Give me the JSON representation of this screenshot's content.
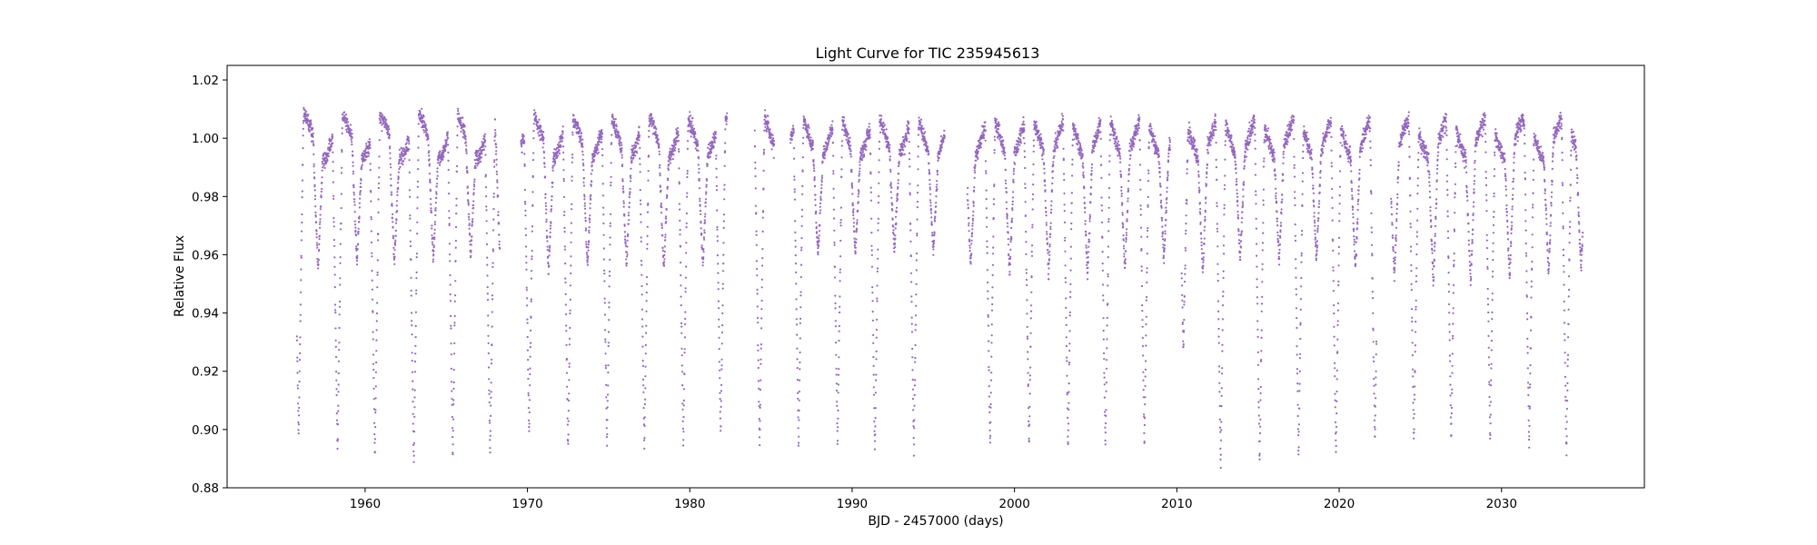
{
  "chart_data": {
    "type": "scatter",
    "title": "Light Curve for TIC 235945613",
    "xlabel": "BJD - 2457000 (days)",
    "ylabel": "Relative Flux",
    "xlim": [
      1951.5,
      2038.8
    ],
    "ylim": [
      0.88,
      1.025
    ],
    "x_ticks": [
      1960,
      1970,
      1980,
      1990,
      2000,
      2010,
      2020,
      2030
    ],
    "x_tick_labels": [
      "1960",
      "1970",
      "1980",
      "1990",
      "2000",
      "2010",
      "2020",
      "2030"
    ],
    "y_ticks": [
      0.88,
      0.9,
      0.92,
      0.94,
      0.96,
      0.98,
      1.0,
      1.02
    ],
    "y_tick_labels": [
      "0.88",
      "0.90",
      "0.92",
      "0.94",
      "0.96",
      "0.98",
      "1.00",
      "1.02"
    ],
    "grid": false,
    "marker_color": "#9467bd",
    "observing_segments": [
      [
        1955.8,
        1968.3
      ],
      [
        1969.6,
        1982.3
      ],
      [
        1984.0,
        1985.2
      ],
      [
        1986.2,
        1995.7
      ],
      [
        1997.1,
        2009.6
      ],
      [
        2010.3,
        2022.3
      ],
      [
        2023.2,
        2035.0
      ]
    ],
    "primary_eclipse_times": [
      1955.9,
      1958.3,
      1960.6,
      1963.0,
      1965.4,
      1967.7,
      1970.1,
      1972.5,
      1974.9,
      1977.2,
      1979.6,
      1981.9,
      1984.3,
      1986.7,
      1989.1,
      1991.4,
      1993.8,
      1998.5,
      2000.9,
      2003.3,
      2005.6,
      2008.0,
      2010.4,
      2012.7,
      2015.1,
      2017.5,
      2019.8,
      2022.2,
      2024.6,
      2026.9,
      2029.3,
      2031.7,
      2034.0
    ],
    "primary_eclipse_depths": [
      0.897,
      0.892,
      0.891,
      0.888,
      0.891,
      0.891,
      0.899,
      0.893,
      0.894,
      0.894,
      0.895,
      0.898,
      0.894,
      0.894,
      0.894,
      0.892,
      0.892,
      0.893,
      0.894,
      0.894,
      0.894,
      0.894,
      0.927,
      0.887,
      0.888,
      0.89,
      0.892,
      0.895,
      0.896,
      0.896,
      0.896,
      0.894,
      0.891
    ],
    "secondary_eclipse_times": [
      1957.1,
      1959.5,
      1961.8,
      1964.2,
      1966.5,
      1968.3,
      1971.3,
      1973.7,
      1976.1,
      1978.4,
      1980.8,
      1987.9,
      1990.2,
      1992.6,
      1995.0,
      1997.3,
      1999.7,
      2002.1,
      2004.5,
      2006.8,
      2009.2,
      2011.6,
      2013.9,
      2016.3,
      2018.6,
      2021.0,
      2023.4,
      2025.8,
      2028.1,
      2030.5,
      2032.9,
      2034.9
    ],
    "secondary_eclipse_depths": [
      0.955,
      0.957,
      0.957,
      0.958,
      0.959,
      0.959,
      0.953,
      0.956,
      0.956,
      0.955,
      0.956,
      0.96,
      0.96,
      0.961,
      0.961,
      0.956,
      0.953,
      0.953,
      0.953,
      0.955,
      0.958,
      0.953,
      0.958,
      0.958,
      0.958,
      0.955,
      0.952,
      0.95,
      0.95,
      0.952,
      0.953,
      0.955
    ],
    "out_of_eclipse_flux": {
      "baseline": 1.0,
      "modulation_amplitude": 0.007,
      "modulation_period": 2.35,
      "noise": 0.002
    }
  }
}
